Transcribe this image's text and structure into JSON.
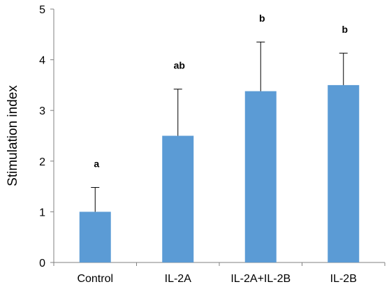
{
  "chart_data": {
    "type": "bar",
    "categories": [
      "Control",
      "IL-2A",
      "IL-2A+IL-2B",
      "IL-2B"
    ],
    "values": [
      1.0,
      2.5,
      3.38,
      3.5
    ],
    "error_upper": [
      1.48,
      3.42,
      4.35,
      4.13
    ],
    "significance_labels": [
      "a",
      "ab",
      "b",
      "b"
    ],
    "title": "",
    "xlabel": "",
    "ylabel": "Stimulation index",
    "ylim": [
      0,
      5
    ],
    "yticks": [
      0,
      1,
      2,
      3,
      4,
      5
    ],
    "bar_color": "#5b9bd5",
    "grid": false,
    "legend": "none"
  }
}
